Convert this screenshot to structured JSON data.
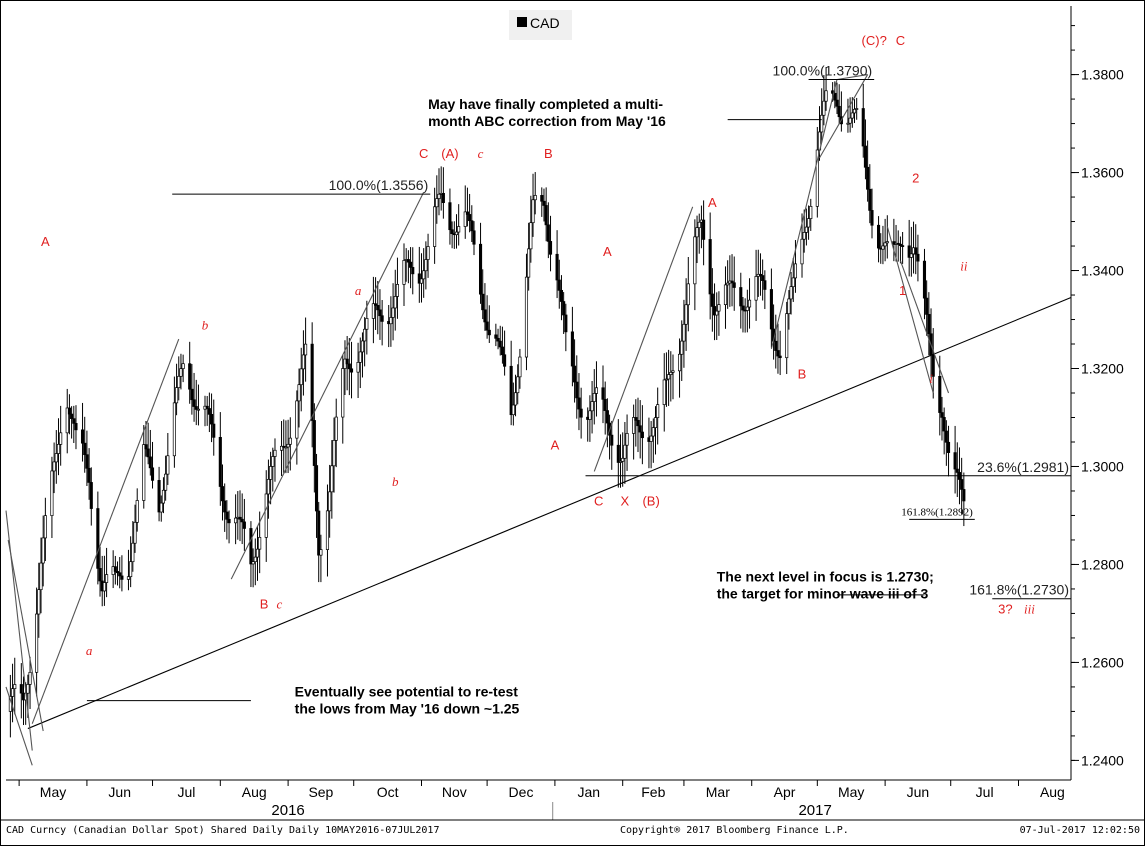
{
  "chart_data": {
    "type": "candlestick",
    "legend": {
      "label": "CAD",
      "placement": "top-center",
      "color": "#000000"
    },
    "yaxis": {
      "position": "right",
      "ylim": [
        1.236,
        1.394
      ],
      "ticks": [
        1.24,
        1.26,
        1.28,
        1.3,
        1.32,
        1.34,
        1.36,
        1.38
      ],
      "tick_labels": [
        "1.2400",
        "1.2600",
        "1.2800",
        "1.3000",
        "1.3200",
        "1.3400",
        "1.3600",
        "1.3800"
      ]
    },
    "xaxis": {
      "month_labels": [
        "May",
        "Jun",
        "Jul",
        "Aug",
        "Sep",
        "Oct",
        "Nov",
        "Dec",
        "Jan",
        "Feb",
        "Mar",
        "Apr",
        "May",
        "Jun",
        "Jul",
        "Aug"
      ],
      "month_starts": [
        "2016-05-01",
        "2016-06-01",
        "2016-07-01",
        "2016-08-01",
        "2016-09-01",
        "2016-10-01",
        "2016-11-01",
        "2016-12-01",
        "2017-01-01",
        "2017-02-01",
        "2017-03-01",
        "2017-04-01",
        "2017-05-01",
        "2017-06-01",
        "2017-07-01",
        "2017-08-01"
      ],
      "range": [
        "2016-04-25",
        "2017-08-25"
      ],
      "years": [
        {
          "label": "2016",
          "center": "2016-09-01"
        },
        {
          "label": "2017",
          "center": "2017-04-30"
        }
      ],
      "year_divider": "2016-12-31"
    },
    "price_path": [
      [
        "2016-04-27",
        1.25
      ],
      [
        "2016-05-03",
        1.253
      ],
      [
        "2016-05-10",
        1.275
      ],
      [
        "2016-05-17",
        1.3
      ],
      [
        "2016-05-22",
        1.318
      ],
      [
        "2016-05-27",
        1.304
      ],
      [
        "2016-06-02",
        1.298
      ],
      [
        "2016-06-08",
        1.276
      ],
      [
        "2016-06-14",
        1.275
      ],
      [
        "2016-06-20",
        1.282
      ],
      [
        "2016-06-27",
        1.3
      ],
      [
        "2016-07-04",
        1.295
      ],
      [
        "2016-07-11",
        1.309
      ],
      [
        "2016-07-16",
        1.322
      ],
      [
        "2016-07-22",
        1.314
      ],
      [
        "2016-07-29",
        1.303
      ],
      [
        "2016-08-05",
        1.292
      ],
      [
        "2016-08-10",
        1.285
      ],
      [
        "2016-08-15",
        1.281
      ],
      [
        "2016-08-20",
        1.292
      ],
      [
        "2016-08-27",
        1.3
      ],
      [
        "2016-09-03",
        1.312
      ],
      [
        "2016-09-10",
        1.322
      ],
      [
        "2016-09-15",
        1.285
      ],
      [
        "2016-09-20",
        1.296
      ],
      [
        "2016-09-27",
        1.32
      ],
      [
        "2016-10-04",
        1.326
      ],
      [
        "2016-10-10",
        1.329
      ],
      [
        "2016-10-16",
        1.333
      ],
      [
        "2016-10-23",
        1.337
      ],
      [
        "2016-10-30",
        1.341
      ],
      [
        "2016-11-05",
        1.346
      ],
      [
        "2016-11-10",
        1.353
      ],
      [
        "2016-11-15",
        1.352
      ],
      [
        "2016-11-20",
        1.35
      ],
      [
        "2016-11-27",
        1.34
      ],
      [
        "2016-12-02",
        1.33
      ],
      [
        "2016-12-07",
        1.32
      ],
      [
        "2016-12-12",
        1.312
      ],
      [
        "2016-12-17",
        1.33
      ],
      [
        "2016-12-22",
        1.35
      ],
      [
        "2016-12-27",
        1.355
      ],
      [
        "2017-01-01",
        1.343
      ],
      [
        "2017-01-06",
        1.323
      ],
      [
        "2017-01-11",
        1.316
      ],
      [
        "2017-01-16",
        1.312
      ],
      [
        "2017-01-21",
        1.312
      ],
      [
        "2017-01-27",
        1.308
      ],
      [
        "2017-02-01",
        1.302
      ],
      [
        "2017-02-06",
        1.306
      ],
      [
        "2017-02-11",
        1.309
      ],
      [
        "2017-02-16",
        1.31
      ],
      [
        "2017-02-21",
        1.314
      ],
      [
        "2017-02-26",
        1.325
      ],
      [
        "2017-03-03",
        1.337
      ],
      [
        "2017-03-09",
        1.348
      ],
      [
        "2017-03-15",
        1.335
      ],
      [
        "2017-03-21",
        1.333
      ],
      [
        "2017-03-27",
        1.336
      ],
      [
        "2017-04-02",
        1.337
      ],
      [
        "2017-04-08",
        1.332
      ],
      [
        "2017-04-14",
        1.326
      ],
      [
        "2017-04-20",
        1.334
      ],
      [
        "2017-04-25",
        1.35
      ],
      [
        "2017-05-01",
        1.365
      ],
      [
        "2017-05-06",
        1.374
      ],
      [
        "2017-05-10",
        1.376
      ],
      [
        "2017-05-15",
        1.372
      ],
      [
        "2017-05-20",
        1.368
      ],
      [
        "2017-05-25",
        1.355
      ],
      [
        "2017-05-30",
        1.346
      ],
      [
        "2017-06-04",
        1.34
      ],
      [
        "2017-06-09",
        1.348
      ],
      [
        "2017-06-14",
        1.346
      ],
      [
        "2017-06-19",
        1.33
      ],
      [
        "2017-06-23",
        1.32
      ],
      [
        "2017-06-27",
        1.314
      ],
      [
        "2017-06-29",
        1.306
      ],
      [
        "2017-07-01",
        1.298
      ],
      [
        "2017-07-03",
        1.295
      ],
      [
        "2017-07-07",
        1.293
      ]
    ],
    "trendlines": [
      {
        "name": "long-term-support",
        "from": [
          "2016-05-05",
          1.2465
        ],
        "to": [
          "2017-08-25",
          1.3345
        ]
      },
      {
        "name": "swing-1",
        "from": [
          "2016-05-07",
          1.2475
        ],
        "to": [
          "2016-07-13",
          1.326
        ]
      },
      {
        "name": "swing-2",
        "from": [
          "2016-08-06",
          1.277
        ],
        "to": [
          "2016-11-02",
          1.356
        ]
      },
      {
        "name": "swing-3",
        "from": [
          "2017-01-19",
          1.299
        ],
        "to": [
          "2017-03-05",
          1.353
        ]
      },
      {
        "name": "swing-4",
        "from": [
          "2017-04-10",
          1.324
        ],
        "to": [
          "2017-05-10",
          1.379
        ]
      },
      {
        "name": "swing-5",
        "from": [
          "2017-05-10",
          1.379
        ],
        "to": [
          "2017-05-24",
          1.38
        ]
      },
      {
        "name": "swing-6",
        "from": [
          "2017-05-24",
          1.38
        ],
        "to": [
          "2017-05-02",
          1.363
        ]
      },
      {
        "name": "swing-7",
        "from": [
          "2017-06-08",
          1.342
        ],
        "to": [
          "2017-06-30",
          1.315
        ]
      },
      {
        "name": "left-drop-1",
        "from": [
          "2016-04-25",
          1.291
        ],
        "to": [
          "2016-05-07",
          1.242
        ]
      },
      {
        "name": "left-drop-2",
        "from": [
          "2016-04-25",
          1.255
        ],
        "to": [
          "2016-05-07",
          1.239
        ]
      },
      {
        "name": "left-drop-3",
        "from": [
          "2016-04-26",
          1.285
        ],
        "to": [
          "2016-05-12",
          1.246
        ]
      },
      {
        "name": "right-drop",
        "from": [
          "2017-06-02",
          1.349
        ],
        "to": [
          "2017-06-23",
          1.315
        ]
      }
    ],
    "fib_levels": [
      {
        "label": "100.0%(1.3556)",
        "price": 1.3556,
        "from": "2016-07-10",
        "to": "2016-11-05"
      },
      {
        "label": "100.0%(1.3790)",
        "price": 1.379,
        "from": "2017-04-27",
        "to": "2017-05-27"
      },
      {
        "label": "23.6%(1.2981)",
        "price": 1.2981,
        "from": "2017-07-05",
        "to": "2017-08-25"
      },
      {
        "label": "161.8%(1.2892)",
        "price": 1.2892,
        "from": "2017-06-12",
        "to": "2017-07-12"
      },
      {
        "label": "161.8%(1.2730)",
        "price": 1.273,
        "from": "2017-07-20",
        "to": "2017-08-25"
      },
      {
        "label": "",
        "price": 1.2981,
        "from": "2017-01-15",
        "to": "2017-07-05"
      }
    ],
    "wave_labels": [
      {
        "text": "A",
        "x": "2016-05-13",
        "y": 1.345,
        "style": "upright"
      },
      {
        "text": "b",
        "x": "2016-07-25",
        "y": 1.328,
        "style": "italic"
      },
      {
        "text": "a",
        "x": "2016-06-02",
        "y": 1.2615,
        "style": "italic"
      },
      {
        "text": "B",
        "x": "2016-08-21",
        "y": 1.271,
        "style": "upright"
      },
      {
        "text": "c",
        "x": "2016-08-28",
        "y": 1.271,
        "style": "italic"
      },
      {
        "text": "a",
        "x": "2016-10-03",
        "y": 1.335,
        "style": "italic"
      },
      {
        "text": "b",
        "x": "2016-10-20",
        "y": 1.296,
        "style": "italic"
      },
      {
        "text": "C",
        "x": "2016-11-02",
        "y": 1.363,
        "style": "upright"
      },
      {
        "text": "(A)",
        "x": "2016-11-14",
        "y": 1.363,
        "style": "upright"
      },
      {
        "text": "c",
        "x": "2016-11-28",
        "y": 1.363,
        "style": "italic"
      },
      {
        "text": "B",
        "x": "2016-12-29",
        "y": 1.363,
        "style": "upright"
      },
      {
        "text": "A",
        "x": "2017-01-01",
        "y": 1.3035,
        "style": "upright"
      },
      {
        "text": "A",
        "x": "2017-01-25",
        "y": 1.343,
        "style": "upright"
      },
      {
        "text": "C",
        "x": "2017-01-21",
        "y": 1.292,
        "style": "upright"
      },
      {
        "text": "X",
        "x": "2017-02-02",
        "y": 1.292,
        "style": "upright"
      },
      {
        "text": "(B)",
        "x": "2017-02-14",
        "y": 1.292,
        "style": "upright"
      },
      {
        "text": "A",
        "x": "2017-03-14",
        "y": 1.353,
        "style": "upright"
      },
      {
        "text": "B",
        "x": "2017-04-24",
        "y": 1.318,
        "style": "upright"
      },
      {
        "text": "(C)?",
        "x": "2017-05-27",
        "y": 1.386,
        "style": "upright"
      },
      {
        "text": "C",
        "x": "2017-06-08",
        "y": 1.386,
        "style": "upright"
      },
      {
        "text": "2",
        "x": "2017-06-15",
        "y": 1.358,
        "style": "upright"
      },
      {
        "text": "1",
        "x": "2017-06-09",
        "y": 1.335,
        "style": "upright"
      },
      {
        "text": "ii",
        "x": "2017-07-07",
        "y": 1.34,
        "style": "italic"
      },
      {
        "text": "i",
        "x": "2017-06-22",
        "y": 1.317,
        "style": "italic"
      },
      {
        "text": "3?",
        "x": "2017-07-26",
        "y": 1.27,
        "style": "upright"
      },
      {
        "text": "iii",
        "x": "2017-08-06",
        "y": 1.27,
        "style": "italic"
      }
    ],
    "annotations": [
      {
        "lines": [
          "May have finally completed a multi-",
          "month ABC correction from May '16"
        ],
        "x": "2016-11-04",
        "y": 1.373,
        "leader": {
          "from": [
            "2017-03-21",
            1.3708
          ],
          "to": [
            "2017-05-03",
            1.3708
          ]
        }
      },
      {
        "lines": [
          "The next level in focus is 1.2730;",
          "the target for minor wave iii of 3"
        ],
        "x": "2017-03-16",
        "y": 1.2765,
        "leader": {
          "from": [
            "2017-05-10",
            1.2738
          ],
          "to": [
            "2017-06-19",
            1.2738
          ]
        }
      },
      {
        "lines": [
          "Eventually see potential to re-test",
          "the lows from May '16 down ~1.25"
        ],
        "x": "2016-09-04",
        "y": 1.253,
        "leader": {
          "from": [
            "2016-06-01",
            1.2522
          ],
          "to": [
            "2016-08-15",
            1.2522
          ]
        }
      }
    ]
  },
  "footer": {
    "left": "CAD Curncy (Canadian Dollar Spot) Shared Daily  Daily 10MAY2016-07JUL2017",
    "center": "Copyright® 2017 Bloomberg Finance L.P.",
    "right": "07-Jul-2017 12:02:50"
  },
  "colors": {
    "wave_label": "#e02020",
    "line": "#000000",
    "background": "#ffffff"
  }
}
